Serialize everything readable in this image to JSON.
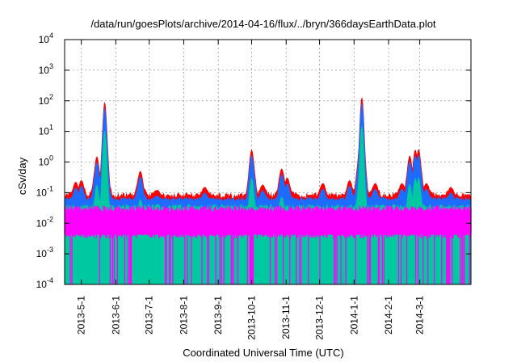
{
  "chart_data": {
    "type": "area",
    "title": "/data/run/goesPlots/archive/2014-04-16/flux/../bryn/366daysEarthData.plot",
    "xlabel": "Coordinated Universal Time (UTC)",
    "ylabel": "cSv/day",
    "yscale": "log",
    "ylim": [
      0.0001,
      10000
    ],
    "xlim": [
      "2013-04-16",
      "2014-04-16"
    ],
    "grid": true,
    "x_tick_labels": [
      "2013-5-1",
      "2013-6-1",
      "2013-7-1",
      "2013-8-1",
      "2013-9-1",
      "2013-10-1",
      "2013-11-1",
      "2013-12-1",
      "2014-1-1",
      "2014-2-1",
      "2014-3-1"
    ],
    "y_ticks": [
      {
        "base": "10",
        "exp": "-4"
      },
      {
        "base": "10",
        "exp": "-3"
      },
      {
        "base": "10",
        "exp": "-2"
      },
      {
        "base": "10",
        "exp": "-1"
      },
      {
        "base": "10",
        "exp": "0"
      },
      {
        "base": "10",
        "exp": "1"
      },
      {
        "base": "10",
        "exp": "2"
      },
      {
        "base": "10",
        "exp": "3"
      },
      {
        "base": "10",
        "exp": "4"
      }
    ],
    "series_colors": [
      "#ff0000",
      "#1e6cff",
      "#00c8a0",
      "#ff00ff"
    ],
    "baseline": {
      "red": 0.08,
      "blue": 0.06,
      "green": 0.035,
      "magenta_top": 0.03,
      "magenta_floor": 0.004
    },
    "peaks": [
      {
        "date": "2013-04-26",
        "value": 0.22
      },
      {
        "date": "2013-05-01",
        "value": 0.25
      },
      {
        "date": "2013-05-15",
        "value": 1.5
      },
      {
        "date": "2013-05-22",
        "value": 90
      },
      {
        "date": "2013-06-23",
        "value": 0.5
      },
      {
        "date": "2013-07-08",
        "value": 0.12
      },
      {
        "date": "2013-08-20",
        "value": 0.15
      },
      {
        "date": "2013-10-01",
        "value": 2.5
      },
      {
        "date": "2013-10-11",
        "value": 0.18
      },
      {
        "date": "2013-10-28",
        "value": 0.6
      },
      {
        "date": "2013-11-02",
        "value": 0.3
      },
      {
        "date": "2013-12-04",
        "value": 0.2
      },
      {
        "date": "2013-12-28",
        "value": 0.25
      },
      {
        "date": "2014-01-06",
        "value": 2.5
      },
      {
        "date": "2014-01-08",
        "value": 130
      },
      {
        "date": "2014-01-20",
        "value": 0.2
      },
      {
        "date": "2014-02-13",
        "value": 0.2
      },
      {
        "date": "2014-02-20",
        "value": 1.6
      },
      {
        "date": "2014-02-25",
        "value": 2.5
      },
      {
        "date": "2014-02-28",
        "value": 2.6
      },
      {
        "date": "2014-03-07",
        "value": 0.2
      },
      {
        "date": "2014-03-29",
        "value": 0.15
      }
    ],
    "magenta_dropout_dates": [
      "2013-09-30",
      "2013-10-03"
    ]
  }
}
